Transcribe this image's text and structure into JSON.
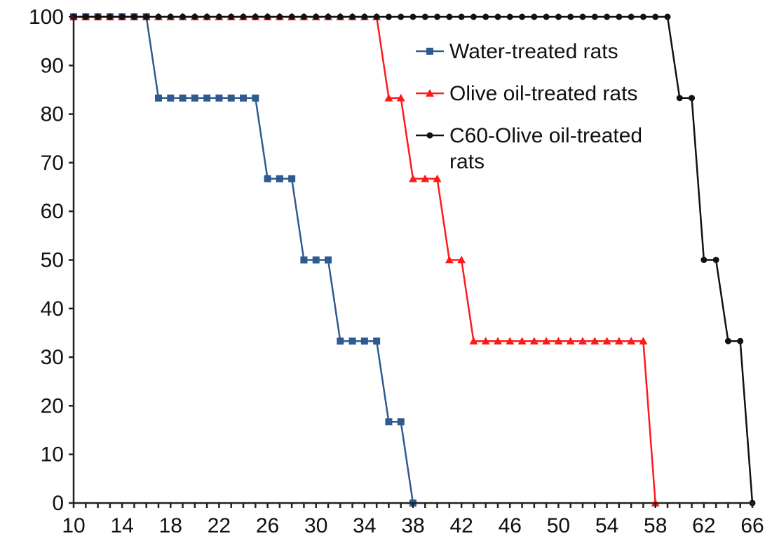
{
  "chart_data": {
    "type": "line",
    "title": "",
    "xlabel": "",
    "ylabel": "",
    "xlim": [
      10,
      66
    ],
    "ylim": [
      0,
      100
    ],
    "x_tick_labels": [
      "10",
      "14",
      "18",
      "22",
      "26",
      "30",
      "34",
      "38",
      "42",
      "46",
      "50",
      "54",
      "58",
      "62",
      "66"
    ],
    "y_tick_labels": [
      "0",
      "10",
      "20",
      "30",
      "40",
      "50",
      "60",
      "70",
      "80",
      "90",
      "100"
    ],
    "grid": false,
    "legend_position": "top-right",
    "series": [
      {
        "name": "Water-treated rats",
        "color": "#2f5a8f",
        "marker": "square",
        "x": [
          10,
          11,
          12,
          13,
          14,
          15,
          16,
          17,
          18,
          19,
          20,
          21,
          22,
          23,
          24,
          25,
          26,
          27,
          28,
          29,
          30,
          31,
          32,
          33,
          34,
          35,
          36,
          37,
          38
        ],
        "y": [
          100,
          100,
          100,
          100,
          100,
          100,
          100,
          83.3,
          83.3,
          83.3,
          83.3,
          83.3,
          83.3,
          83.3,
          83.3,
          83.3,
          66.7,
          66.7,
          66.7,
          50,
          50,
          50,
          33.3,
          33.3,
          33.3,
          33.3,
          16.7,
          16.7,
          0
        ]
      },
      {
        "name": "Olive oil-treated rats",
        "color": "#ff1a1a",
        "marker": "triangle",
        "x": [
          10,
          11,
          12,
          13,
          14,
          15,
          16,
          17,
          18,
          19,
          20,
          21,
          22,
          23,
          24,
          25,
          26,
          27,
          28,
          29,
          30,
          31,
          32,
          33,
          34,
          35,
          36,
          37,
          38,
          39,
          40,
          41,
          42,
          43,
          44,
          45,
          46,
          47,
          48,
          49,
          50,
          51,
          52,
          53,
          54,
          55,
          56,
          57,
          58
        ],
        "y": [
          100,
          100,
          100,
          100,
          100,
          100,
          100,
          100,
          100,
          100,
          100,
          100,
          100,
          100,
          100,
          100,
          100,
          100,
          100,
          100,
          100,
          100,
          100,
          100,
          100,
          100,
          83.3,
          83.3,
          66.7,
          66.7,
          66.7,
          50,
          50,
          33.3,
          33.3,
          33.3,
          33.3,
          33.3,
          33.3,
          33.3,
          33.3,
          33.3,
          33.3,
          33.3,
          33.3,
          33.3,
          33.3,
          33.3,
          0
        ]
      },
      {
        "name": "C60-Olive oil-treated rats",
        "legend_lines": [
          "C60-Olive oil-treated",
          "rats"
        ],
        "color": "#111111",
        "marker": "circle",
        "x": [
          10,
          11,
          12,
          13,
          14,
          15,
          16,
          17,
          18,
          19,
          20,
          21,
          22,
          23,
          24,
          25,
          26,
          27,
          28,
          29,
          30,
          31,
          32,
          33,
          34,
          35,
          36,
          37,
          38,
          39,
          40,
          41,
          42,
          43,
          44,
          45,
          46,
          47,
          48,
          49,
          50,
          51,
          52,
          53,
          54,
          55,
          56,
          57,
          58,
          59,
          60,
          61,
          62,
          63,
          64,
          65,
          66
        ],
        "y": [
          100,
          100,
          100,
          100,
          100,
          100,
          100,
          100,
          100,
          100,
          100,
          100,
          100,
          100,
          100,
          100,
          100,
          100,
          100,
          100,
          100,
          100,
          100,
          100,
          100,
          100,
          100,
          100,
          100,
          100,
          100,
          100,
          100,
          100,
          100,
          100,
          100,
          100,
          100,
          100,
          100,
          100,
          100,
          100,
          100,
          100,
          100,
          100,
          100,
          100,
          83.3,
          83.3,
          50,
          50,
          33.3,
          33.3,
          0
        ]
      }
    ]
  }
}
